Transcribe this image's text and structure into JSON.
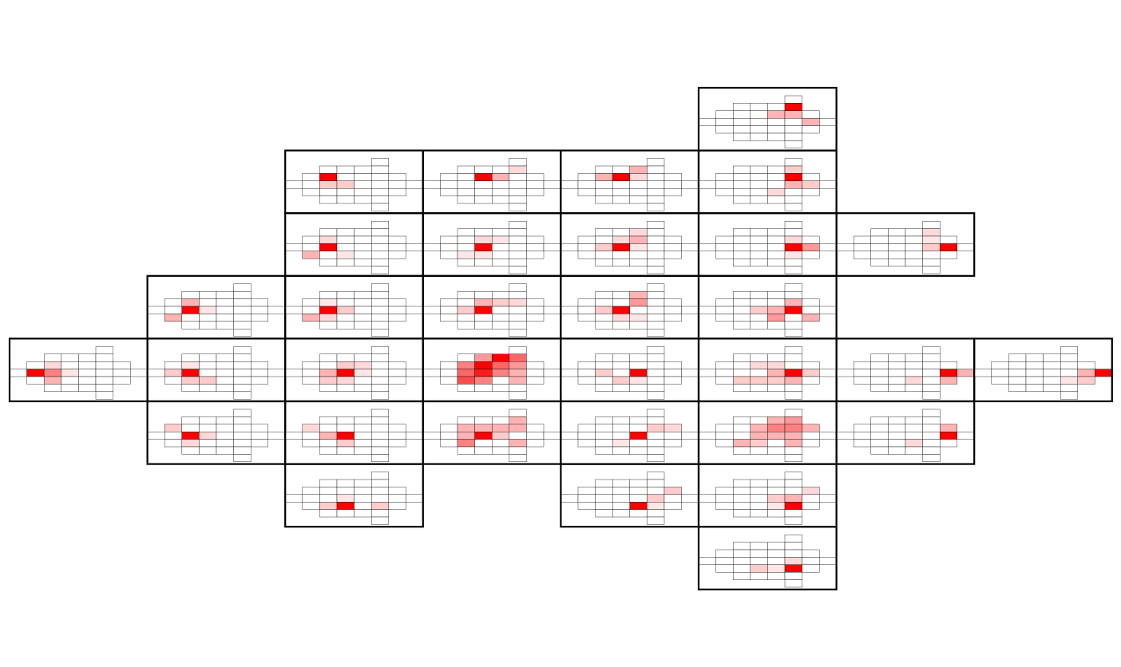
{
  "colors": {
    "background": "#ffffff",
    "panel_border": "#000000",
    "cell_border": "#000000",
    "hot": "#ff0000",
    "cold": "#ffffff"
  },
  "diagram": {
    "grid_columns": 8,
    "grid_rows": 8,
    "panels": [
      {
        "col": 5,
        "row": 0,
        "hot": [
          [
            4,
            0
          ]
        ],
        "heat": [
          [
            3,
            1,
            0.3
          ],
          [
            4,
            1,
            0.3
          ],
          [
            5,
            2,
            0.3
          ]
        ]
      },
      {
        "col": 2,
        "row": 1,
        "hot": [
          [
            1,
            1
          ]
        ],
        "heat": [
          [
            1,
            2,
            0.2
          ],
          [
            2,
            2,
            0.2
          ]
        ]
      },
      {
        "col": 3,
        "row": 1,
        "hot": [
          [
            2,
            1
          ]
        ],
        "heat": [
          [
            3,
            1,
            0.3
          ],
          [
            4,
            0,
            0.15
          ]
        ]
      },
      {
        "col": 4,
        "row": 1,
        "hot": [
          [
            2,
            1
          ]
        ],
        "heat": [
          [
            1,
            1,
            0.3
          ],
          [
            3,
            1,
            0.15
          ],
          [
            3,
            0,
            0.3
          ]
        ]
      },
      {
        "col": 5,
        "row": 1,
        "hot": [
          [
            4,
            1
          ]
        ],
        "heat": [
          [
            4,
            0,
            0.2
          ],
          [
            4,
            2,
            0.3
          ],
          [
            5,
            2,
            0.2
          ],
          [
            3,
            3,
            0.15
          ]
        ]
      },
      {
        "col": 2,
        "row": 2,
        "hot": [
          [
            1,
            2
          ]
        ],
        "heat": [
          [
            0,
            3,
            0.3
          ],
          [
            1,
            1,
            0.15
          ],
          [
            2,
            3,
            0.1
          ]
        ]
      },
      {
        "col": 3,
        "row": 2,
        "hot": [
          [
            2,
            2
          ]
        ],
        "heat": [
          [
            2,
            1,
            0.15
          ],
          [
            3,
            1,
            0.1
          ],
          [
            1,
            3,
            0.1
          ],
          [
            2,
            3,
            0.1
          ]
        ]
      },
      {
        "col": 4,
        "row": 2,
        "hot": [
          [
            2,
            2
          ]
        ],
        "heat": [
          [
            3,
            1,
            0.3
          ],
          [
            1,
            2,
            0.2
          ],
          [
            2,
            1,
            0.15
          ],
          [
            3,
            2,
            0.1
          ],
          [
            3,
            0,
            0.15
          ]
        ]
      },
      {
        "col": 5,
        "row": 2,
        "hot": [
          [
            4,
            2
          ]
        ],
        "heat": [
          [
            5,
            2,
            0.4
          ],
          [
            4,
            1,
            0.15
          ],
          [
            4,
            3,
            0.1
          ]
        ]
      },
      {
        "col": 6,
        "row": 2,
        "hot": [
          [
            5,
            2
          ]
        ],
        "heat": [
          [
            4,
            2,
            0.2
          ],
          [
            4,
            1,
            0.1
          ],
          [
            4,
            0,
            0.15
          ]
        ]
      },
      {
        "col": 1,
        "row": 3,
        "hot": [
          [
            1,
            2
          ]
        ],
        "heat": [
          [
            0,
            3,
            0.3
          ],
          [
            1,
            1,
            0.3
          ],
          [
            2,
            2,
            0.1
          ]
        ]
      },
      {
        "col": 2,
        "row": 3,
        "hot": [
          [
            1,
            2
          ]
        ],
        "heat": [
          [
            0,
            3,
            0.3
          ],
          [
            2,
            2,
            0.2
          ],
          [
            1,
            1,
            0.1
          ],
          [
            1,
            3,
            0.15
          ]
        ]
      },
      {
        "col": 3,
        "row": 3,
        "hot": [
          [
            2,
            2
          ]
        ],
        "heat": [
          [
            2,
            1,
            0.3
          ],
          [
            3,
            1,
            0.2
          ],
          [
            1,
            2,
            0.2
          ],
          [
            4,
            1,
            0.15
          ]
        ]
      },
      {
        "col": 4,
        "row": 3,
        "hot": [
          [
            2,
            2
          ]
        ],
        "heat": [
          [
            3,
            1,
            0.4
          ],
          [
            1,
            2,
            0.2
          ],
          [
            2,
            3,
            0.15
          ],
          [
            3,
            3,
            0.1
          ],
          [
            3,
            0,
            0.3
          ]
        ]
      },
      {
        "col": 5,
        "row": 3,
        "hot": [
          [
            4,
            2
          ]
        ],
        "heat": [
          [
            3,
            3,
            0.4
          ],
          [
            3,
            2,
            0.3
          ],
          [
            2,
            2,
            0.2
          ],
          [
            4,
            1,
            0.3
          ],
          [
            5,
            3,
            0.3
          ]
        ]
      },
      {
        "col": 0,
        "row": 4,
        "hot": [
          [
            0,
            2
          ]
        ],
        "heat": [
          [
            1,
            2,
            0.5
          ],
          [
            1,
            3,
            0.3
          ],
          [
            1,
            1,
            0.15
          ],
          [
            2,
            2,
            0.1
          ]
        ]
      },
      {
        "col": 1,
        "row": 4,
        "hot": [
          [
            1,
            2
          ]
        ],
        "heat": [
          [
            0,
            2,
            0.2
          ],
          [
            1,
            3,
            0.2
          ],
          [
            2,
            3,
            0.2
          ],
          [
            1,
            1,
            0.1
          ]
        ]
      },
      {
        "col": 2,
        "row": 4,
        "hot": [
          [
            2,
            2
          ]
        ],
        "heat": [
          [
            1,
            2,
            0.3
          ],
          [
            2,
            1,
            0.2
          ],
          [
            3,
            1,
            0.15
          ],
          [
            1,
            3,
            0.2
          ],
          [
            2,
            3,
            0.15
          ],
          [
            3,
            2,
            0.1
          ]
        ]
      },
      {
        "col": 3,
        "row": 4,
        "hot": [
          [
            2,
            1
          ],
          [
            3,
            0
          ]
        ],
        "heat": [
          [
            1,
            1,
            0.5
          ],
          [
            1,
            2,
            0.6
          ],
          [
            1,
            3,
            0.7
          ],
          [
            2,
            2,
            0.9
          ],
          [
            3,
            1,
            0.6
          ],
          [
            3,
            2,
            0.5
          ],
          [
            4,
            1,
            0.4
          ],
          [
            4,
            0,
            0.6
          ],
          [
            4,
            2,
            0.3
          ],
          [
            2,
            0,
            0.4
          ],
          [
            2,
            3,
            0.5
          ],
          [
            4,
            3,
            0.3
          ]
        ]
      },
      {
        "col": 4,
        "row": 4,
        "hot": [
          [
            3,
            2
          ]
        ],
        "heat": [
          [
            1,
            2,
            0.2
          ],
          [
            2,
            3,
            0.2
          ],
          [
            3,
            3,
            0.1
          ]
        ]
      },
      {
        "col": 5,
        "row": 4,
        "hot": [
          [
            4,
            2
          ]
        ],
        "heat": [
          [
            3,
            2,
            0.3
          ],
          [
            3,
            3,
            0.2
          ],
          [
            2,
            3,
            0.2
          ],
          [
            4,
            3,
            0.3
          ],
          [
            1,
            3,
            0.2
          ],
          [
            2,
            1,
            0.15
          ],
          [
            3,
            1,
            0.15
          ],
          [
            5,
            2,
            0.2
          ]
        ]
      },
      {
        "col": 6,
        "row": 4,
        "hot": [
          [
            5,
            2
          ]
        ],
        "heat": [
          [
            5,
            3,
            0.3
          ],
          [
            3,
            3,
            0.15
          ],
          [
            6,
            2,
            0.3
          ]
        ]
      },
      {
        "col": 7,
        "row": 4,
        "hot": [
          [
            6,
            2
          ]
        ],
        "heat": [
          [
            5,
            2,
            0.3
          ],
          [
            5,
            3,
            0.2
          ],
          [
            4,
            3,
            0.1
          ]
        ]
      },
      {
        "col": 1,
        "row": 5,
        "hot": [
          [
            1,
            2
          ]
        ],
        "heat": [
          [
            0,
            1,
            0.2
          ],
          [
            1,
            3,
            0.15
          ],
          [
            2,
            2,
            0.15
          ]
        ]
      },
      {
        "col": 2,
        "row": 5,
        "hot": [
          [
            2,
            2
          ]
        ],
        "heat": [
          [
            1,
            2,
            0.3
          ],
          [
            0,
            1,
            0.15
          ],
          [
            2,
            3,
            0.2
          ]
        ]
      },
      {
        "col": 3,
        "row": 5,
        "hot": [
          [
            2,
            2
          ]
        ],
        "heat": [
          [
            1,
            1,
            0.3
          ],
          [
            2,
            1,
            0.3
          ],
          [
            3,
            1,
            0.3
          ],
          [
            4,
            0,
            0.3
          ],
          [
            4,
            1,
            0.3
          ],
          [
            1,
            3,
            0.5
          ],
          [
            3,
            2,
            0.2
          ],
          [
            4,
            3,
            0.3
          ],
          [
            1,
            2,
            0.3
          ]
        ]
      },
      {
        "col": 4,
        "row": 5,
        "hot": [
          [
            3,
            2
          ]
        ],
        "heat": [
          [
            4,
            1,
            0.2
          ],
          [
            2,
            3,
            0.1
          ],
          [
            5,
            1,
            0.15
          ]
        ]
      },
      {
        "col": 5,
        "row": 5,
        "hot": [],
        "heat": [
          [
            2,
            1,
            0.3
          ],
          [
            3,
            1,
            0.5
          ],
          [
            3,
            0,
            0.3
          ],
          [
            4,
            0,
            0.4
          ],
          [
            4,
            1,
            0.5
          ],
          [
            5,
            1,
            0.3
          ],
          [
            2,
            2,
            0.3
          ],
          [
            3,
            2,
            0.3
          ],
          [
            4,
            2,
            0.3
          ],
          [
            1,
            3,
            0.3
          ],
          [
            2,
            3,
            0.2
          ],
          [
            4,
            3,
            0.3
          ],
          [
            6,
            1,
            0.3
          ]
        ]
      },
      {
        "col": 6,
        "row": 5,
        "hot": [
          [
            5,
            2
          ]
        ],
        "heat": [
          [
            5,
            1,
            0.3
          ],
          [
            6,
            1,
            0.2
          ],
          [
            3,
            3,
            0.15
          ]
        ]
      },
      {
        "col": 2,
        "row": 6,
        "hot": [
          [
            2,
            3
          ]
        ],
        "heat": [
          [
            1,
            3,
            0.2
          ],
          [
            4,
            3,
            0.2
          ],
          [
            2,
            2,
            0.1
          ]
        ]
      },
      {
        "col": 4,
        "row": 6,
        "hot": [
          [
            3,
            3
          ]
        ],
        "heat": [
          [
            4,
            2,
            0.2
          ],
          [
            5,
            1,
            0.2
          ],
          [
            4,
            3,
            0.1
          ]
        ]
      },
      {
        "col": 5,
        "row": 6,
        "hot": [
          [
            4,
            3
          ]
        ],
        "heat": [
          [
            4,
            2,
            0.3
          ],
          [
            3,
            2,
            0.2
          ],
          [
            5,
            1,
            0.15
          ],
          [
            3,
            3,
            0.1
          ]
        ]
      },
      {
        "col": 5,
        "row": 7,
        "hot": [
          [
            4,
            3
          ]
        ],
        "heat": [
          [
            2,
            3,
            0.2
          ],
          [
            3,
            3,
            0.1
          ],
          [
            4,
            2,
            0.15
          ]
        ]
      }
    ]
  }
}
